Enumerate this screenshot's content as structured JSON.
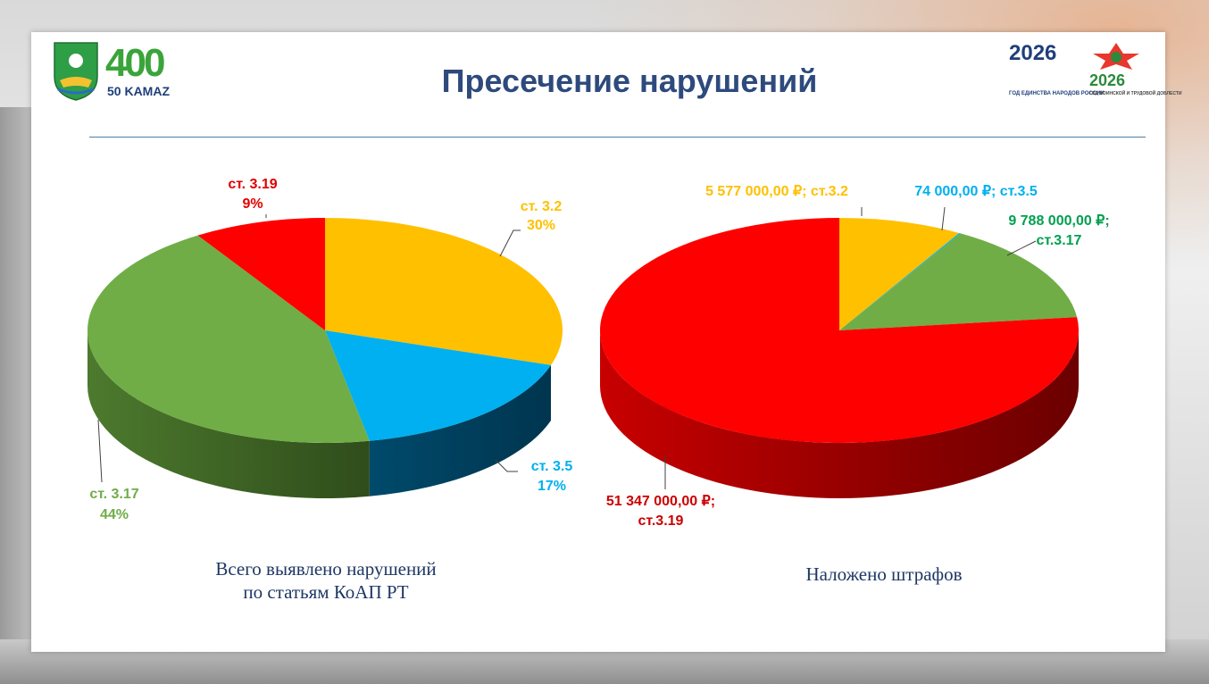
{
  "slide": {
    "title": "Пресечение нарушений",
    "logos": {
      "city_400": "400",
      "kamaz": "50 KAMAZ",
      "year_unity": "2026",
      "year_unity_caption": "ГОД ЕДИНСТВА НАРОДОВ РОССИИ",
      "year_labor": "2026",
      "year_labor_caption": "ГОД ВОИНСКОЙ И ТРУДОВОЙ ДОБЛЕСТИ"
    }
  },
  "chart_data": [
    {
      "type": "pie",
      "caption_line1": "Всего выявлено нарушений",
      "caption_line2": "по статьям КоАП РТ",
      "slices": [
        {
          "label": "ст. 3.2",
          "percent_label": "30%",
          "value": 30,
          "color": "#ffc000"
        },
        {
          "label": "ст. 3.5",
          "percent_label": "17%",
          "value": 17,
          "color": "#00b0f0"
        },
        {
          "label": "ст. 3.17",
          "percent_label": "44%",
          "value": 44,
          "color": "#70ad47"
        },
        {
          "label": "ст. 3.19",
          "percent_label": "9%",
          "value": 9,
          "color": "#ff0000"
        }
      ]
    },
    {
      "type": "pie",
      "caption": "Наложено штрафов",
      "slices": [
        {
          "label": "5 577 000,00 ₽; ст.3.2",
          "value": 5577000,
          "color": "#ffc000",
          "label_color": "#ffc000"
        },
        {
          "label": "74 000,00 ₽; ст.3.5",
          "value": 74000,
          "color": "#00b0f0",
          "label_color": "#00b0f0"
        },
        {
          "label_line1": "9 788 000,00 ₽;",
          "label_line2": "ст.3.17",
          "value": 9788000,
          "color": "#70ad47",
          "label_color": "#00a050"
        },
        {
          "label_line1": "51 347 000,00 ₽;",
          "label_line2": "ст.3.19",
          "value": 51347000,
          "color": "#ff0000",
          "label_color": "#cc0000"
        }
      ]
    }
  ]
}
